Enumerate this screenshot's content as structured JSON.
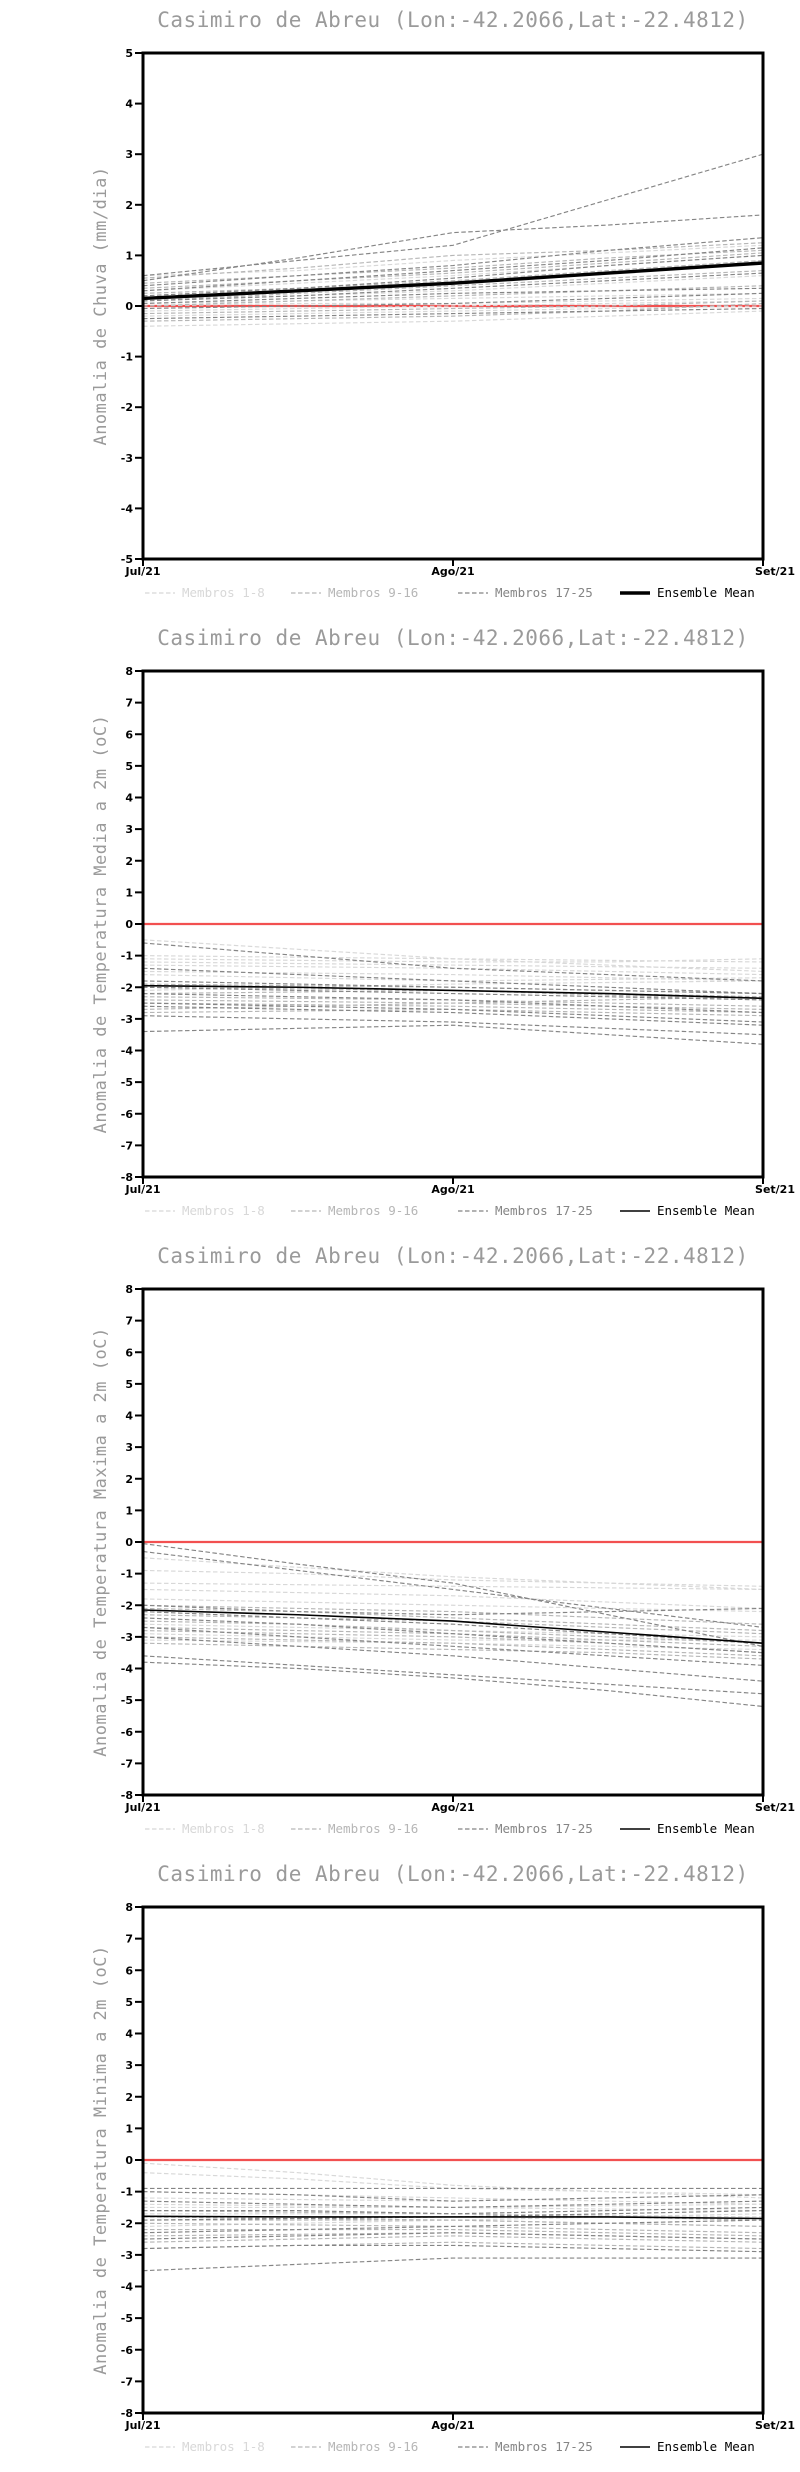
{
  "page": {
    "background": "#ffffff"
  },
  "colors": {
    "group1": "#d8d8d8",
    "group2": "#b6b6b6",
    "group3": "#858585",
    "mean": "#000000",
    "zero_line": "#f25050",
    "title_text": "#9a9a9a",
    "ylabel_text": "#9a9a9a",
    "tick_text": "#000000",
    "axis": "#000000"
  },
  "chart_data": [
    {
      "type": "line",
      "title": "Casimiro de Abreu (Lon:-42.2066,Lat:-22.4812)",
      "ylabel": "Anomalia de Chuva (mm/dia)",
      "xlabel": "",
      "ylim": [
        -5,
        5
      ],
      "ytick_step": 1,
      "x_range": [
        0,
        2
      ],
      "x": [
        0,
        0.5,
        1,
        1.5,
        2
      ],
      "x_tick_positions": [
        0,
        1,
        2
      ],
      "x_tick_labels": [
        "Jul/21",
        "Ago/21",
        "Set/21"
      ],
      "grid": false,
      "legend_position": "bottom",
      "zero_line": 0,
      "groups": [
        {
          "name": "Membros 1-8",
          "style": "dashed",
          "color_key": "group1",
          "members": [
            [
              0.3,
              0.45,
              0.6,
              0.8,
              1.0
            ],
            [
              0.15,
              0.2,
              0.3,
              0.45,
              0.6
            ],
            [
              0.05,
              0.1,
              0.15,
              0.2,
              0.25
            ],
            [
              0.0,
              0.05,
              0.05,
              0.1,
              0.15
            ],
            [
              -0.1,
              -0.05,
              0.0,
              0.05,
              0.1
            ],
            [
              -0.2,
              -0.15,
              -0.1,
              -0.05,
              0.0
            ],
            [
              -0.4,
              -0.35,
              -0.3,
              -0.2,
              -0.1
            ],
            [
              0.6,
              0.7,
              0.9,
              1.05,
              1.2
            ]
          ]
        },
        {
          "name": "Membros 9-16",
          "style": "dashed",
          "color_key": "group2",
          "members": [
            [
              0.55,
              0.75,
              1.0,
              1.1,
              1.25
            ],
            [
              0.45,
              0.6,
              0.75,
              0.95,
              1.1
            ],
            [
              0.35,
              0.5,
              0.65,
              0.85,
              1.05
            ],
            [
              0.25,
              0.35,
              0.5,
              0.7,
              0.9
            ],
            [
              0.1,
              0.25,
              0.4,
              0.55,
              0.7
            ],
            [
              0.0,
              0.1,
              0.2,
              0.3,
              0.4
            ],
            [
              -0.15,
              -0.1,
              -0.05,
              0.0,
              0.1
            ],
            [
              -0.3,
              -0.25,
              -0.2,
              -0.1,
              0.05
            ]
          ]
        },
        {
          "name": "Membros 17-25",
          "style": "dashed",
          "color_key": "group3",
          "members": [
            [
              0.6,
              0.9,
              1.2,
              2.1,
              3.0
            ],
            [
              0.5,
              0.95,
              1.45,
              1.6,
              1.8
            ],
            [
              0.4,
              0.6,
              0.8,
              1.1,
              1.35
            ],
            [
              0.3,
              0.5,
              0.7,
              0.9,
              1.15
            ],
            [
              0.2,
              0.35,
              0.55,
              0.8,
              1.0
            ],
            [
              0.1,
              0.2,
              0.35,
              0.5,
              0.65
            ],
            [
              0.05,
              0.15,
              0.25,
              0.3,
              0.35
            ],
            [
              -0.05,
              0.0,
              0.05,
              0.15,
              0.25
            ],
            [
              -0.25,
              -0.2,
              -0.15,
              -0.1,
              -0.05
            ]
          ]
        }
      ],
      "mean": {
        "name": "Ensemble Mean",
        "style": "solid",
        "color_key": "mean",
        "width": 3.4,
        "values": [
          0.15,
          0.3,
          0.45,
          0.65,
          0.85
        ]
      }
    },
    {
      "type": "line",
      "title": "Casimiro de Abreu (Lon:-42.2066,Lat:-22.4812)",
      "ylabel": "Anomalia de Temperatura Media a 2m (oC)",
      "xlabel": "",
      "ylim": [
        -8,
        8
      ],
      "ytick_step": 1,
      "x_range": [
        0,
        2
      ],
      "x": [
        0,
        0.5,
        1,
        1.5,
        2
      ],
      "x_tick_positions": [
        0,
        1,
        2
      ],
      "x_tick_labels": [
        "Jul/21",
        "Ago/21",
        "Set/21"
      ],
      "grid": false,
      "legend_position": "bottom",
      "zero_line": 0,
      "groups": [
        {
          "name": "Membros 1-8",
          "style": "dashed",
          "color_key": "group1",
          "members": [
            [
              -0.5,
              -0.8,
              -1.1,
              -1.3,
              -1.5
            ],
            [
              -1.0,
              -1.05,
              -1.1,
              -1.15,
              -1.2
            ],
            [
              -1.1,
              -1.15,
              -1.2,
              -1.2,
              -1.1
            ],
            [
              -1.2,
              -1.25,
              -1.3,
              -1.35,
              -1.4
            ],
            [
              -1.3,
              -1.35,
              -1.4,
              -1.5,
              -1.6
            ],
            [
              -1.5,
              -1.55,
              -1.6,
              -1.7,
              -1.8
            ],
            [
              -1.6,
              -1.7,
              -1.8,
              -1.75,
              -1.7
            ],
            [
              -2.1,
              -2.0,
              -1.9,
              -1.85,
              -1.8
            ]
          ]
        },
        {
          "name": "Membros 9-16",
          "style": "dashed",
          "color_key": "group2",
          "members": [
            [
              -1.9,
              -1.95,
              -2.0,
              -2.1,
              -2.2
            ],
            [
              -2.0,
              -2.05,
              -2.1,
              -2.2,
              -2.3
            ],
            [
              -2.2,
              -2.15,
              -2.1,
              -2.25,
              -2.4
            ],
            [
              -2.3,
              -2.35,
              -2.4,
              -2.5,
              -2.6
            ],
            [
              -2.4,
              -2.45,
              -2.5,
              -2.4,
              -2.3
            ],
            [
              -2.5,
              -2.55,
              -2.6,
              -2.7,
              -2.8
            ],
            [
              -2.7,
              -2.6,
              -2.5,
              -2.6,
              -2.7
            ],
            [
              -2.8,
              -2.75,
              -2.7,
              -2.8,
              -2.9
            ]
          ]
        },
        {
          "name": "Membros 17-25",
          "style": "dashed",
          "color_key": "group3",
          "members": [
            [
              -0.6,
              -1.0,
              -1.4,
              -1.6,
              -1.8
            ],
            [
              -1.4,
              -1.6,
              -1.8,
              -2.0,
              -2.2
            ],
            [
              -1.8,
              -1.9,
              -2.0,
              -2.1,
              -2.2
            ],
            [
              -2.0,
              -2.1,
              -2.2,
              -2.3,
              -2.4
            ],
            [
              -2.2,
              -2.3,
              -2.4,
              -2.6,
              -2.8
            ],
            [
              -2.5,
              -2.6,
              -2.7,
              -2.9,
              -3.1
            ],
            [
              -2.6,
              -2.7,
              -2.8,
              -3.0,
              -3.2
            ],
            [
              -2.9,
              -3.0,
              -3.1,
              -3.3,
              -3.5
            ],
            [
              -3.4,
              -3.3,
              -3.2,
              -3.5,
              -3.8
            ]
          ]
        }
      ],
      "mean": {
        "name": "Ensemble Mean",
        "style": "solid",
        "color_key": "mean",
        "width": 1.6,
        "values": [
          -1.95,
          -2.0,
          -2.1,
          -2.2,
          -2.35
        ]
      }
    },
    {
      "type": "line",
      "title": "Casimiro de Abreu (Lon:-42.2066,Lat:-22.4812)",
      "ylabel": "Anomalia de Temperatura Maxima a 2m (oC)",
      "xlabel": "",
      "ylim": [
        -8,
        8
      ],
      "ytick_step": 1,
      "x_range": [
        0,
        2
      ],
      "x": [
        0,
        0.5,
        1,
        1.5,
        2
      ],
      "x_tick_positions": [
        0,
        1,
        2
      ],
      "x_tick_labels": [
        "Jul/21",
        "Ago/21",
        "Set/21"
      ],
      "grid": false,
      "legend_position": "bottom",
      "zero_line": 0,
      "groups": [
        {
          "name": "Membros 1-8",
          "style": "dashed",
          "color_key": "group1",
          "members": [
            [
              -0.5,
              -0.8,
              -1.1,
              -1.3,
              -1.5
            ],
            [
              -0.9,
              -1.0,
              -1.2,
              -1.3,
              -1.4
            ],
            [
              -1.3,
              -1.35,
              -1.4,
              -1.45,
              -1.5
            ],
            [
              -1.5,
              -1.6,
              -1.7,
              -1.9,
              -2.1
            ],
            [
              -1.8,
              -1.9,
              -2.0,
              -2.1,
              -2.2
            ],
            [
              -2.6,
              -2.7,
              -2.8,
              -2.9,
              -3.0
            ],
            [
              -2.9,
              -3.0,
              -3.1,
              -3.1,
              -3.1
            ],
            [
              -3.1,
              -3.15,
              -3.2,
              -3.3,
              -3.4
            ]
          ]
        },
        {
          "name": "Membros 9-16",
          "style": "dashed",
          "color_key": "group2",
          "members": [
            [
              -2.0,
              -2.1,
              -2.2,
              -2.4,
              -2.6
            ],
            [
              -2.1,
              -2.2,
              -2.4,
              -2.6,
              -2.8
            ],
            [
              -2.3,
              -2.4,
              -2.5,
              -2.7,
              -2.9
            ],
            [
              -2.5,
              -2.6,
              -2.8,
              -3.0,
              -3.2
            ],
            [
              -2.7,
              -2.8,
              -2.9,
              -3.1,
              -3.3
            ],
            [
              -2.8,
              -2.9,
              -3.0,
              -3.2,
              -3.5
            ],
            [
              -3.0,
              -3.1,
              -3.2,
              -3.4,
              -3.6
            ],
            [
              -3.2,
              -3.3,
              -3.4,
              -3.5,
              -3.7
            ]
          ]
        },
        {
          "name": "Membros 17-25",
          "style": "dashed",
          "color_key": "group3",
          "members": [
            [
              -0.05,
              -0.7,
              -1.3,
              -2.3,
              -3.3
            ],
            [
              -0.3,
              -0.9,
              -1.5,
              -2.1,
              -2.7
            ],
            [
              -2.0,
              -2.2,
              -2.3,
              -2.2,
              -2.1
            ],
            [
              -2.2,
              -2.4,
              -2.6,
              -2.9,
              -3.2
            ],
            [
              -2.4,
              -2.6,
              -2.9,
              -3.2,
              -3.5
            ],
            [
              -2.7,
              -3.0,
              -3.3,
              -3.6,
              -3.9
            ],
            [
              -3.0,
              -3.3,
              -3.6,
              -4.0,
              -4.4
            ],
            [
              -3.6,
              -3.9,
              -4.2,
              -4.5,
              -4.8
            ],
            [
              -3.8,
              -4.0,
              -4.3,
              -4.7,
              -5.2
            ]
          ]
        }
      ],
      "mean": {
        "name": "Ensemble Mean",
        "style": "solid",
        "color_key": "mean",
        "width": 1.6,
        "values": [
          -2.15,
          -2.3,
          -2.5,
          -2.85,
          -3.2
        ]
      }
    },
    {
      "type": "line",
      "title": "Casimiro de Abreu (Lon:-42.2066,Lat:-22.4812)",
      "ylabel": "Anomalia de Temperatura Minima a 2m (oC)",
      "xlabel": "",
      "ylim": [
        -8,
        8
      ],
      "ytick_step": 1,
      "x_range": [
        0,
        2
      ],
      "x": [
        0,
        0.5,
        1,
        1.5,
        2
      ],
      "x_tick_positions": [
        0,
        1,
        2
      ],
      "x_tick_labels": [
        "Jul/21",
        "Ago/21",
        "Set/21"
      ],
      "grid": false,
      "legend_position": "bottom",
      "zero_line": 0,
      "groups": [
        {
          "name": "Membros 1-8",
          "style": "dashed",
          "color_key": "group1",
          "members": [
            [
              -0.1,
              -0.4,
              -0.8,
              -1.0,
              -1.2
            ],
            [
              -0.4,
              -0.6,
              -0.9,
              -1.0,
              -1.1
            ],
            [
              -1.0,
              -1.1,
              -1.2,
              -1.3,
              -1.4
            ],
            [
              -1.2,
              -1.25,
              -1.3,
              -1.2,
              -1.1
            ],
            [
              -1.4,
              -1.45,
              -1.5,
              -1.55,
              -1.6
            ],
            [
              -1.5,
              -1.5,
              -1.5,
              -1.45,
              -1.4
            ],
            [
              -1.7,
              -1.7,
              -1.7,
              -1.75,
              -1.8
            ],
            [
              -2.1,
              -2.0,
              -1.9,
              -1.8,
              -1.7
            ]
          ]
        },
        {
          "name": "Membros 9-16",
          "style": "dashed",
          "color_key": "group2",
          "members": [
            [
              -1.6,
              -1.65,
              -1.7,
              -1.8,
              -1.9
            ],
            [
              -1.8,
              -1.85,
              -1.9,
              -2.0,
              -2.1
            ],
            [
              -1.9,
              -1.9,
              -1.9,
              -2.0,
              -2.1
            ],
            [
              -2.0,
              -2.05,
              -2.1,
              -2.2,
              -2.3
            ],
            [
              -2.2,
              -2.2,
              -2.2,
              -2.3,
              -2.4
            ],
            [
              -2.4,
              -2.35,
              -2.3,
              -2.4,
              -2.5
            ],
            [
              -2.6,
              -2.5,
              -2.4,
              -2.5,
              -2.6
            ],
            [
              -2.8,
              -2.7,
              -2.6,
              -2.7,
              -2.8
            ]
          ]
        },
        {
          "name": "Membros 17-25",
          "style": "dashed",
          "color_key": "group3",
          "members": [
            [
              -0.9,
              -0.9,
              -0.9,
              -0.9,
              -0.9
            ],
            [
              -1.0,
              -1.1,
              -1.3,
              -1.2,
              -1.1
            ],
            [
              -1.3,
              -1.4,
              -1.5,
              -1.4,
              -1.3
            ],
            [
              -1.6,
              -1.6,
              -1.7,
              -1.6,
              -1.5
            ],
            [
              -1.9,
              -1.85,
              -1.8,
              -1.7,
              -1.6
            ],
            [
              -2.3,
              -2.2,
              -2.1,
              -2.0,
              -1.9
            ],
            [
              -2.5,
              -2.4,
              -2.3,
              -2.4,
              -2.5
            ],
            [
              -2.8,
              -2.7,
              -2.7,
              -2.8,
              -2.9
            ],
            [
              -3.5,
              -3.3,
              -3.1,
              -3.1,
              -3.1
            ]
          ]
        }
      ],
      "mean": {
        "name": "Ensemble Mean",
        "style": "solid",
        "color_key": "mean",
        "width": 1.6,
        "values": [
          -1.78,
          -1.8,
          -1.8,
          -1.8,
          -1.85
        ]
      }
    }
  ]
}
